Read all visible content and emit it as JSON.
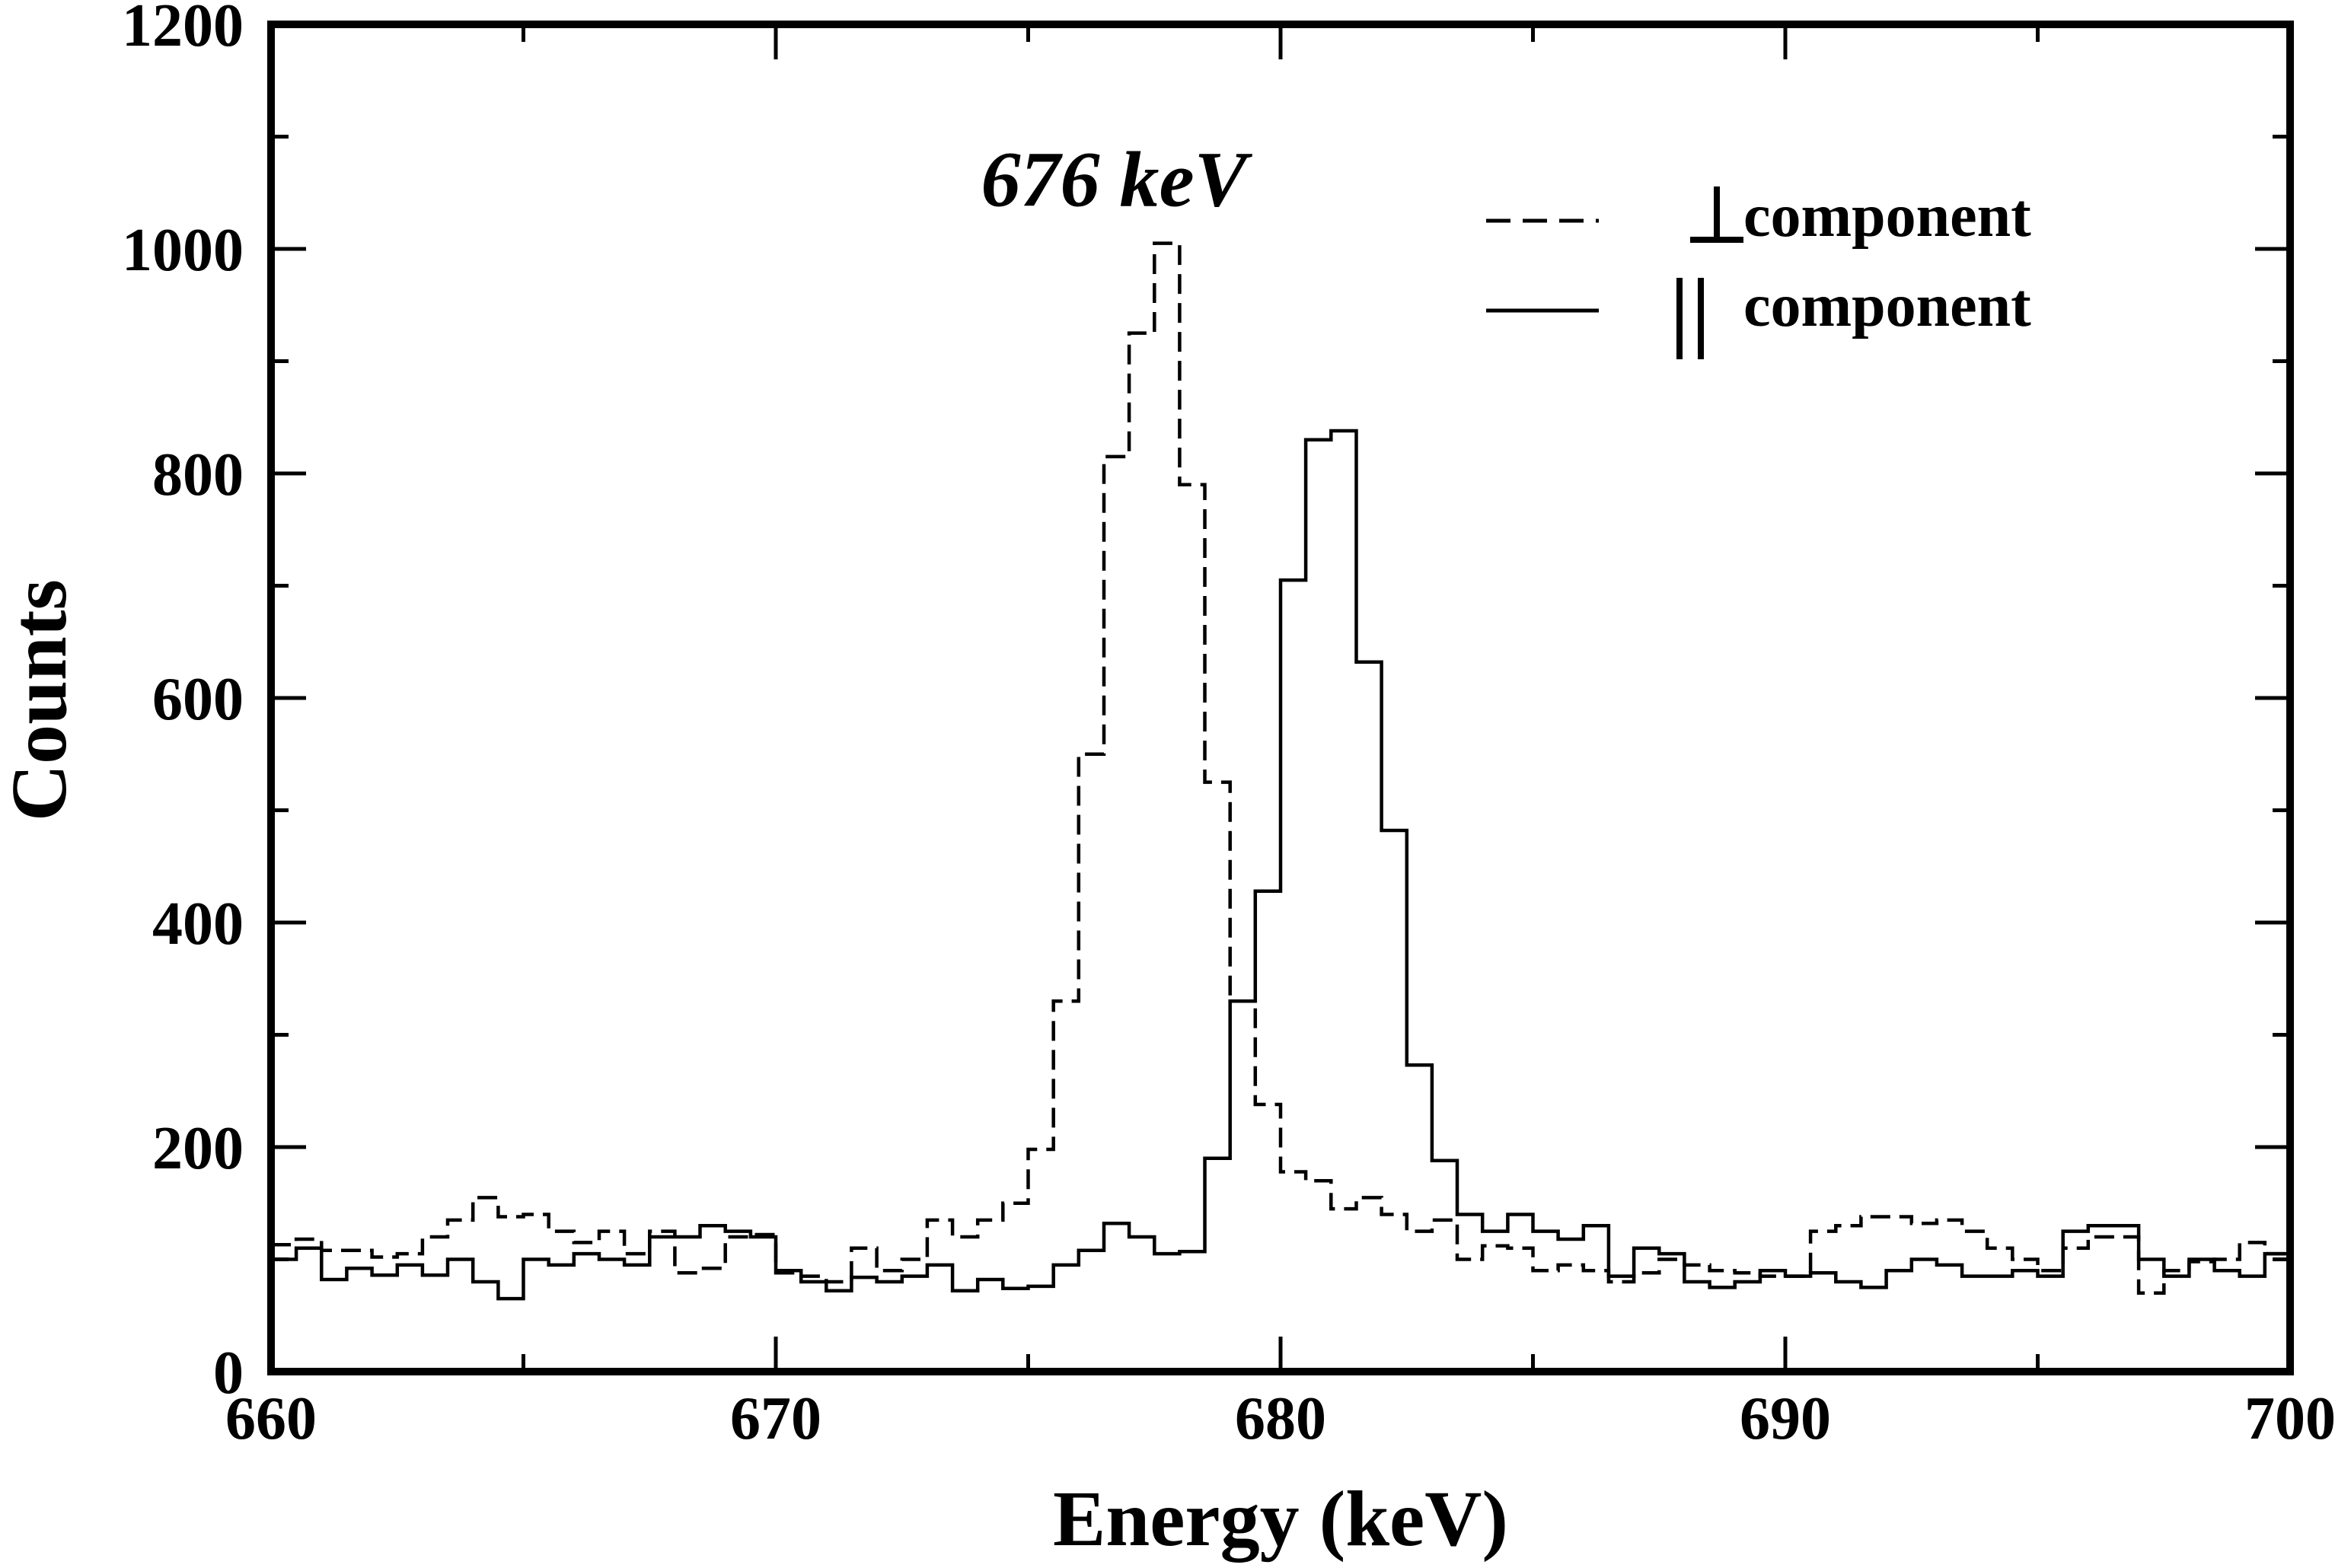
{
  "chart_data": {
    "type": "line",
    "subtype": "step-histogram",
    "title": "",
    "xlabel": "Energy (keV)",
    "ylabel": "Counts",
    "xlim": [
      660,
      700
    ],
    "ylim": [
      0,
      1200
    ],
    "xticks": [
      660,
      670,
      680,
      690,
      700
    ],
    "xtick_labels": [
      "660",
      "670",
      "680",
      "690",
      "700"
    ],
    "yticks": [
      0,
      200,
      400,
      600,
      800,
      1000,
      1200
    ],
    "ytick_labels": [
      "0",
      "200",
      "400",
      "600",
      "800",
      "1000",
      "1200"
    ],
    "bin_width": 0.5,
    "legend_position": "top-right",
    "annotation": {
      "text": "676 keV",
      "color": "#0000ff",
      "x": 676.7,
      "y": 1060
    },
    "series": [
      {
        "name": "perpendicular",
        "legend_symbol": "⊥",
        "legend_label": "component",
        "line_style": "dashed",
        "x": [
          660.0,
          660.5,
          661.0,
          661.5,
          662.0,
          662.5,
          663.0,
          663.5,
          664.0,
          664.5,
          665.0,
          665.5,
          666.0,
          666.5,
          667.0,
          667.5,
          668.0,
          668.5,
          669.0,
          669.5,
          670.0,
          670.5,
          671.0,
          671.5,
          672.0,
          672.5,
          673.0,
          673.5,
          674.0,
          674.5,
          675.0,
          675.5,
          676.0,
          676.5,
          677.0,
          677.5,
          678.0,
          678.5,
          679.0,
          679.5,
          680.0,
          680.5,
          681.0,
          681.5,
          682.0,
          682.5,
          683.0,
          683.5,
          684.0,
          684.5,
          685.0,
          685.5,
          686.0,
          686.5,
          687.0,
          687.5,
          688.0,
          688.5,
          689.0,
          689.5,
          690.0,
          690.5,
          691.0,
          691.5,
          692.0,
          692.5,
          693.0,
          693.5,
          694.0,
          694.5,
          695.0,
          695.5,
          696.0,
          696.5,
          697.0,
          697.5,
          698.0,
          698.5,
          699.0,
          699.5
        ],
        "values": [
          113,
          118,
          108,
          108,
          102,
          105,
          120,
          135,
          155,
          138,
          140,
          125,
          115,
          125,
          105,
          125,
          88,
          92,
          120,
          122,
          88,
          85,
          80,
          110,
          90,
          100,
          135,
          120,
          135,
          150,
          198,
          330,
          550,
          815,
          925,
          1005,
          790,
          525,
          330,
          238,
          178,
          170,
          145,
          155,
          140,
          125,
          135,
          100,
          112,
          110,
          90,
          95,
          90,
          80,
          88,
          100,
          95,
          90,
          88,
          85,
          85,
          125,
          130,
          138,
          138,
          132,
          135,
          125,
          110,
          100,
          90,
          110,
          120,
          120,
          70,
          90,
          98,
          100,
          115,
          105
        ]
      },
      {
        "name": "parallel",
        "legend_symbol": "||",
        "legend_label": "component",
        "line_style": "solid",
        "x": [
          660.0,
          660.5,
          661.0,
          661.5,
          662.0,
          662.5,
          663.0,
          663.5,
          664.0,
          664.5,
          665.0,
          665.5,
          666.0,
          666.5,
          667.0,
          667.5,
          668.0,
          668.5,
          669.0,
          669.5,
          670.0,
          670.5,
          671.0,
          671.5,
          672.0,
          672.5,
          673.0,
          673.5,
          674.0,
          674.5,
          675.0,
          675.5,
          676.0,
          676.5,
          677.0,
          677.5,
          678.0,
          678.5,
          679.0,
          679.5,
          680.0,
          680.5,
          681.0,
          681.5,
          682.0,
          682.5,
          683.0,
          683.5,
          684.0,
          684.5,
          685.0,
          685.5,
          686.0,
          686.5,
          687.0,
          687.5,
          688.0,
          688.5,
          689.0,
          689.5,
          690.0,
          690.5,
          691.0,
          691.5,
          692.0,
          692.5,
          693.0,
          693.5,
          694.0,
          694.5,
          695.0,
          695.5,
          696.0,
          696.5,
          697.0,
          697.5,
          698.0,
          698.5,
          699.0,
          699.5
        ],
        "values": [
          100,
          110,
          82,
          92,
          86,
          95,
          86,
          100,
          80,
          65,
          100,
          95,
          105,
          100,
          95,
          120,
          120,
          130,
          125,
          120,
          90,
          80,
          72,
          84,
          80,
          85,
          95,
          72,
          82,
          74,
          76,
          95,
          108,
          132,
          120,
          105,
          107,
          190,
          330,
          428,
          705,
          830,
          838,
          632,
          482,
          273,
          188,
          140,
          125,
          140,
          125,
          118,
          130,
          85,
          110,
          105,
          80,
          75,
          80,
          90,
          85,
          88,
          80,
          75,
          90,
          100,
          95,
          85,
          85,
          90,
          85,
          125,
          130,
          130,
          100,
          85,
          100,
          90,
          85,
          105
        ]
      }
    ]
  }
}
